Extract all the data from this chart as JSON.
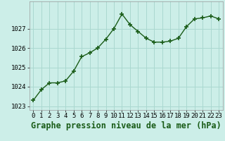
{
  "x": [
    0,
    1,
    2,
    3,
    4,
    5,
    6,
    7,
    8,
    9,
    10,
    11,
    12,
    13,
    14,
    15,
    16,
    17,
    18,
    19,
    20,
    21,
    22,
    23
  ],
  "y": [
    1023.3,
    1023.85,
    1024.2,
    1024.2,
    1024.3,
    1024.8,
    1025.55,
    1025.75,
    1026.0,
    1026.45,
    1027.0,
    1027.75,
    1027.2,
    1026.85,
    1026.5,
    1026.3,
    1026.3,
    1026.35,
    1026.5,
    1027.1,
    1027.5,
    1027.55,
    1027.65,
    1027.5
  ],
  "line_color": "#1a5c18",
  "marker": "+",
  "marker_size": 4,
  "marker_linewidth": 1.2,
  "bg_color": "#cceee8",
  "grid_color": "#aad8d0",
  "title": "Graphe pression niveau de la mer (hPa)",
  "ylim": [
    1022.8,
    1028.4
  ],
  "yticks": [
    1023,
    1024,
    1025,
    1026,
    1027
  ],
  "xticks": [
    0,
    1,
    2,
    3,
    4,
    5,
    6,
    7,
    8,
    9,
    10,
    11,
    12,
    13,
    14,
    15,
    16,
    17,
    18,
    19,
    20,
    21,
    22,
    23
  ],
  "title_fontsize": 8.5,
  "tick_fontsize": 6.5,
  "title_color": "#1a5c18",
  "line_width": 1.0
}
